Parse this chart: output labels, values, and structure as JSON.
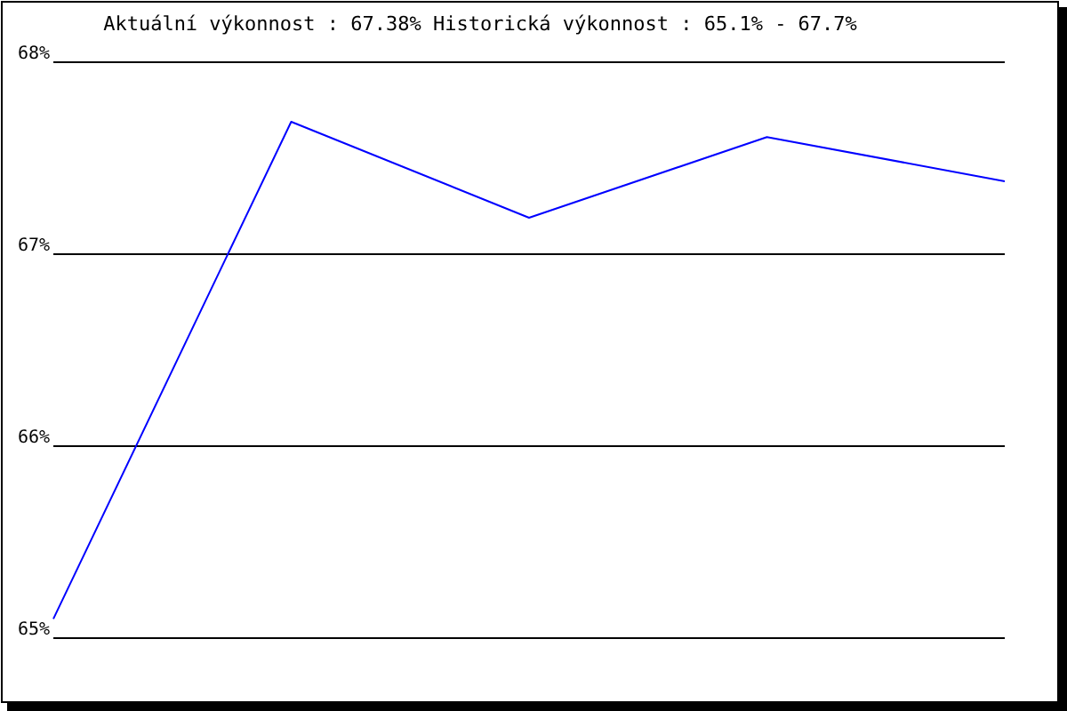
{
  "chart_data": {
    "type": "line",
    "title": "Aktuální výkonnost : 67.38%  Historická výkonnost : 65.1% - 67.7%",
    "categories": [
      null,
      null,
      null,
      null,
      null
    ],
    "series": [
      {
        "color": "#0000ff",
        "values": [
          65.1,
          67.69,
          67.19,
          67.61,
          67.38
        ]
      }
    ],
    "ylim": [
      65,
      68
    ],
    "yticks": [
      {
        "value": 65,
        "label": "65%"
      },
      {
        "value": 66,
        "label": "66%"
      },
      {
        "value": 67,
        "label": "67%"
      },
      {
        "value": 68,
        "label": "68%"
      }
    ],
    "grid": "y",
    "tick_labels": "y",
    "line_style": "solid"
  }
}
